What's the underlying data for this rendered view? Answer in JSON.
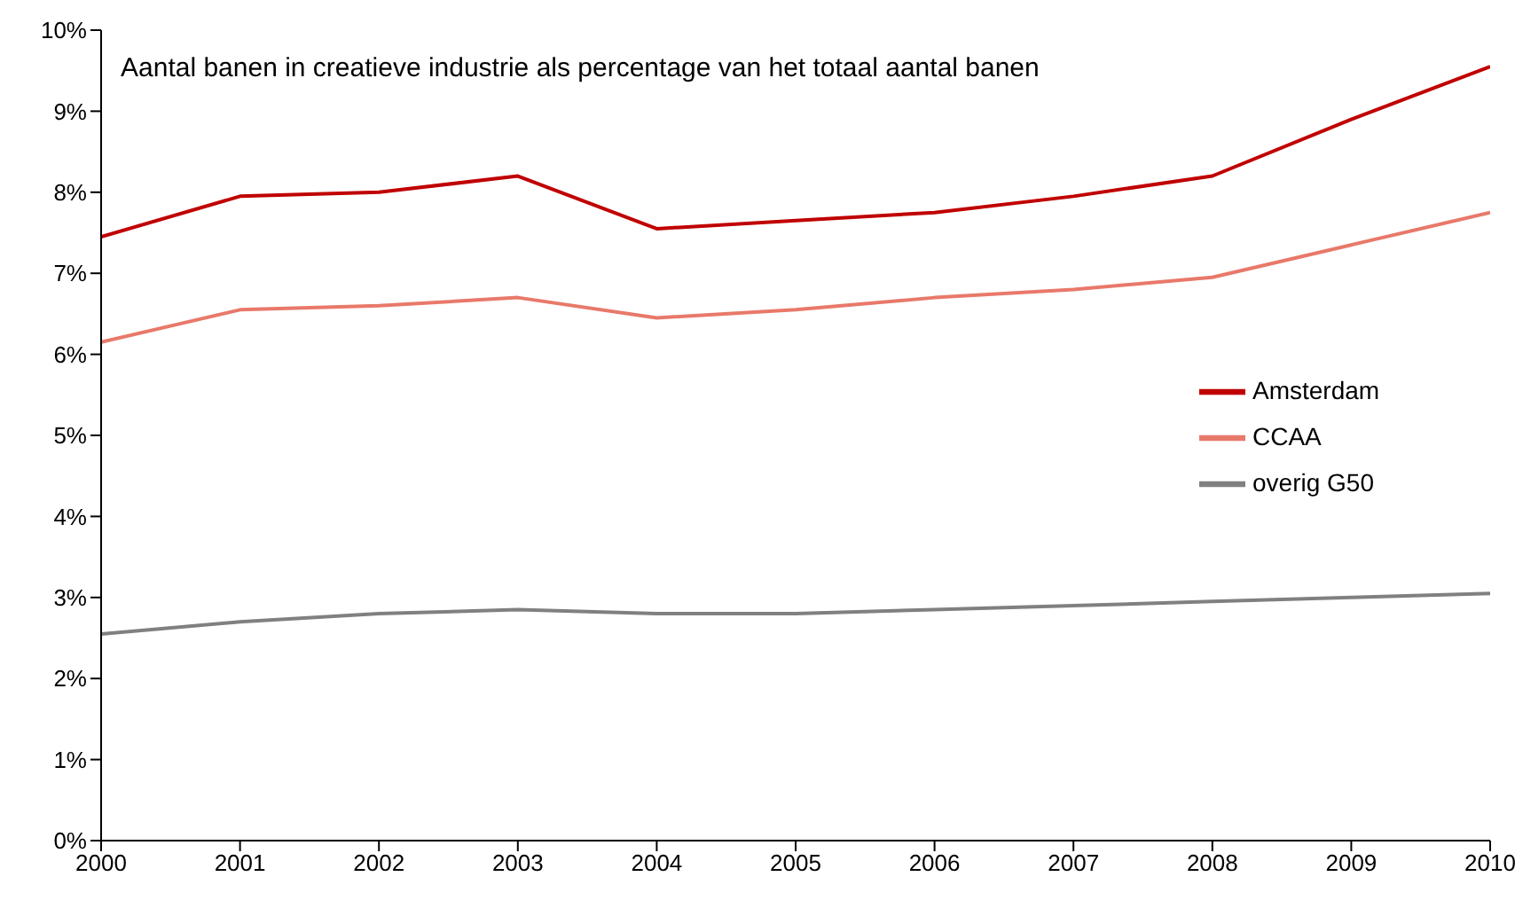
{
  "chart_data": {
    "type": "line",
    "title": "Aantal banen in creatieve industrie als percentage van het totaal aantal banen",
    "x": [
      2000,
      2001,
      2002,
      2003,
      2004,
      2005,
      2006,
      2007,
      2008,
      2009,
      2010
    ],
    "series": [
      {
        "name": "Amsterdam",
        "color": "#c00000",
        "values": [
          7.45,
          7.95,
          8.0,
          8.2,
          7.55,
          7.65,
          7.75,
          7.95,
          8.2,
          8.9,
          9.55
        ]
      },
      {
        "name": "CCAA",
        "color": "#e8796a",
        "values": [
          6.15,
          6.55,
          6.6,
          6.7,
          6.45,
          6.55,
          6.7,
          6.8,
          6.95,
          7.35,
          7.75
        ]
      },
      {
        "name": "overig G50",
        "color": "#808080",
        "values": [
          2.55,
          2.7,
          2.8,
          2.85,
          2.8,
          2.8,
          2.85,
          2.9,
          2.95,
          3.0,
          3.05
        ]
      }
    ],
    "xlim": [
      2000,
      2010
    ],
    "xticks": [
      2000,
      2001,
      2002,
      2003,
      2004,
      2005,
      2006,
      2007,
      2008,
      2009,
      2010
    ],
    "ylim": [
      0,
      10
    ],
    "yticks": [
      {
        "value": 0,
        "label": "0%"
      },
      {
        "value": 1,
        "label": "1%"
      },
      {
        "value": 2,
        "label": "2%"
      },
      {
        "value": 3,
        "label": "3%"
      },
      {
        "value": 4,
        "label": "4%"
      },
      {
        "value": 5,
        "label": "5%"
      },
      {
        "value": 6,
        "label": "6%"
      },
      {
        "value": 7,
        "label": "7%"
      },
      {
        "value": 8,
        "label": "8%"
      },
      {
        "value": 9,
        "label": "9%"
      },
      {
        "value": 10,
        "label": "10%"
      }
    ],
    "grid": false,
    "legend": "right",
    "marker": "none",
    "line_style": "solid"
  }
}
